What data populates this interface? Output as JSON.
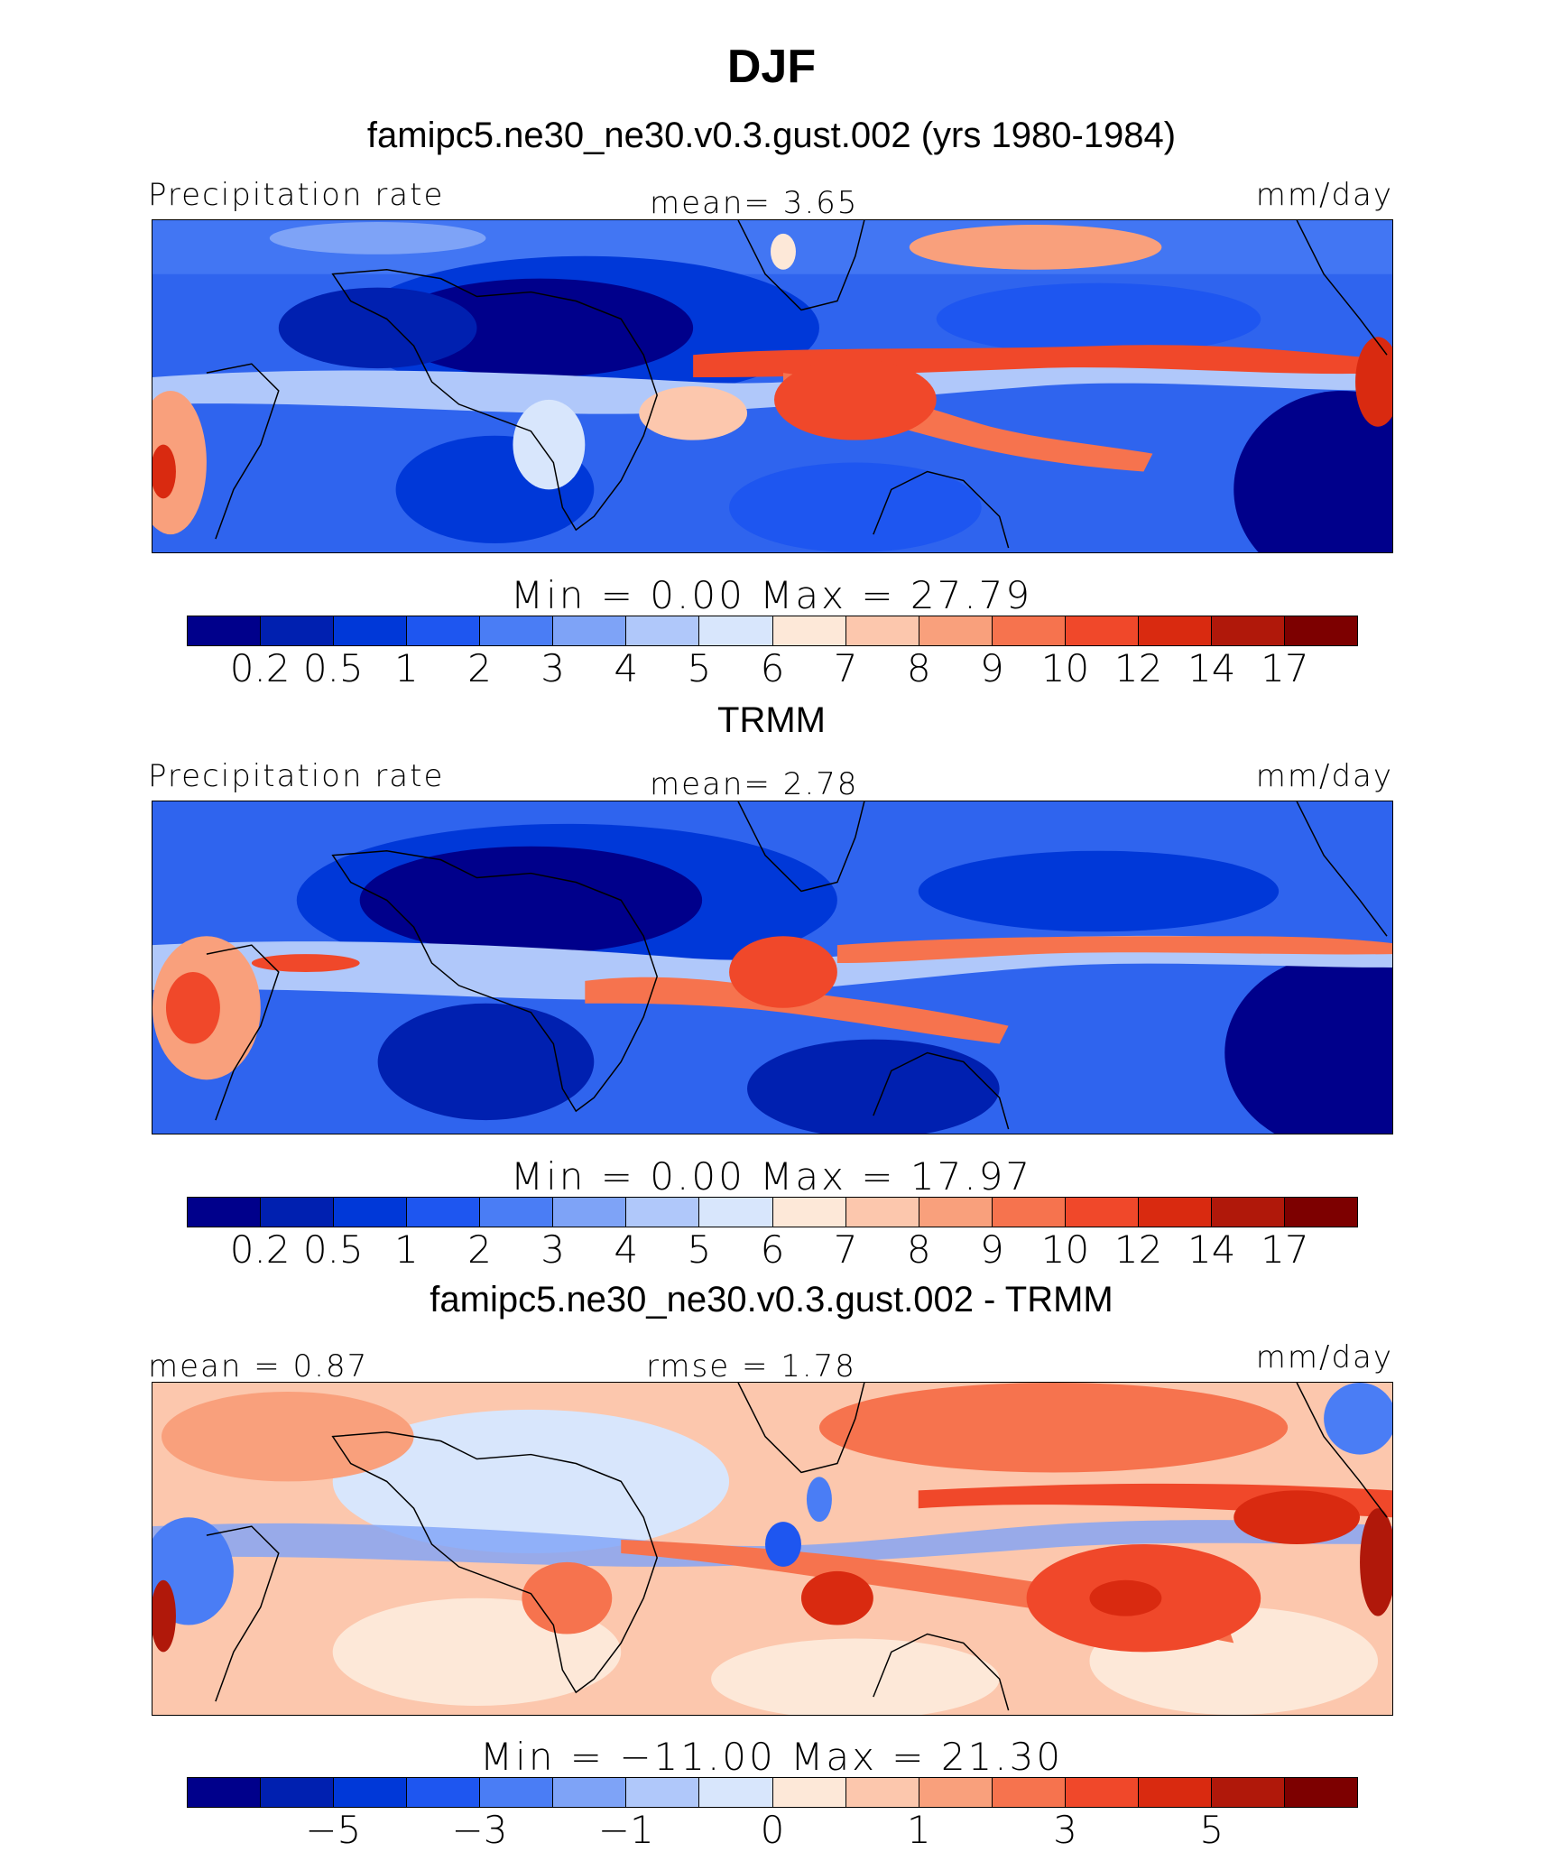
{
  "title": "DJF",
  "colors": {
    "precip_scale": [
      "#00008b",
      "#0020b0",
      "#0038d8",
      "#1e56f0",
      "#4a7df5",
      "#7ea3f7",
      "#b0c8fa",
      "#d8e6fc",
      "#fde8d8",
      "#fcc7ad",
      "#f9a07c",
      "#f6734e",
      "#f0482a",
      "#d92a10",
      "#b0180a",
      "#7d0000"
    ],
    "diff_scale": [
      "#00008b",
      "#0020b0",
      "#0038d8",
      "#1e56f0",
      "#4a7df5",
      "#7ea3f7",
      "#b0c8fa",
      "#d8e6fc",
      "#fde8d8",
      "#fcc7ad",
      "#f9a07c",
      "#f6734e",
      "#f0482a",
      "#d92a10",
      "#b0180a",
      "#7d0000"
    ]
  },
  "panels": [
    {
      "title": "famipc5.ne30_ne30.v0.3.gust.002 (yrs 1980-1984)",
      "left_label": "Precipitation  rate",
      "center_label": "mean=    3.65",
      "right_label": "mm/day",
      "minmax": "Min  =     0.00  Max  =    27.79",
      "ticks": [
        "0.2",
        "0.5",
        "1",
        "2",
        "3",
        "4",
        "5",
        "6",
        "7",
        "8",
        "9",
        "10",
        "12",
        "14",
        "17"
      ]
    },
    {
      "title": "TRMM",
      "left_label": "Precipitation  rate",
      "center_label": "mean=    2.78",
      "right_label": "mm/day",
      "minmax": "Min  =     0.00  Max  =    17.97",
      "ticks": [
        "0.2",
        "0.5",
        "1",
        "2",
        "3",
        "4",
        "5",
        "6",
        "7",
        "8",
        "9",
        "10",
        "12",
        "14",
        "17"
      ]
    },
    {
      "title": "famipc5.ne30_ne30.v0.3.gust.002 - TRMM",
      "left_label": "mean  =    0.87",
      "center_label": "rmse  =    1.78",
      "right_label": "mm/day",
      "minmax": "Min  = −11.00  Max  =   21.30",
      "ticks": [
        "−5",
        "−3",
        "−1",
        "0",
        "1",
        "3",
        "5"
      ]
    }
  ]
}
